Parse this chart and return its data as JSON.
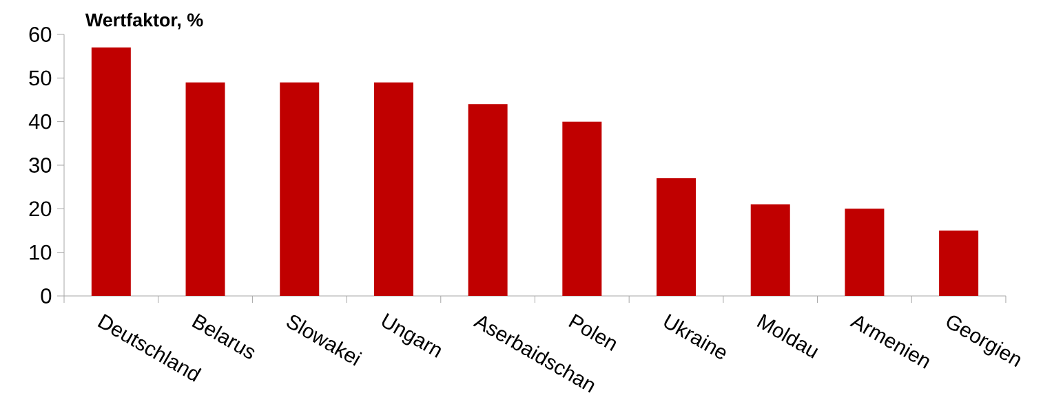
{
  "chart_data": {
    "type": "bar",
    "title": "Wertfaktor, %",
    "categories": [
      "Deutschland",
      "Belarus",
      "Slowakei",
      "Ungarn",
      "Aserbaidschan",
      "Polen",
      "Ukraine",
      "Moldau",
      "Armenien",
      "Georgien"
    ],
    "values": [
      57,
      49,
      49,
      49,
      44,
      40,
      27,
      21,
      20,
      15
    ],
    "color": "#c00000",
    "ylim": [
      0,
      60
    ],
    "yticks": [
      0,
      10,
      20,
      30,
      40,
      50,
      60
    ],
    "grid": false
  }
}
